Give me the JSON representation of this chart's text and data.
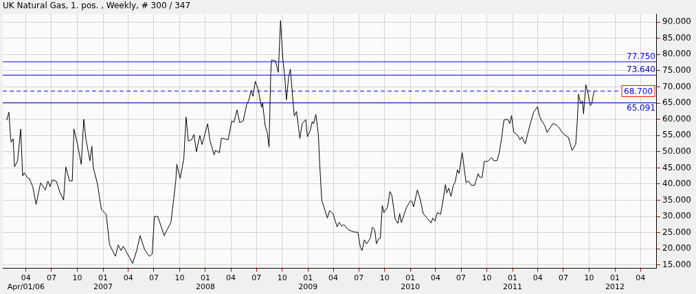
{
  "chart_data": {
    "type": "line",
    "title": "UK Natural Gas, 1. pos. , Weekly, # 300 / 347",
    "x": [
      "2006-01-22",
      "2006-01-30",
      "2006-02-05",
      "2006-02-07",
      "2006-02-14",
      "2006-02-19",
      "2006-03-02",
      "2006-03-13",
      "2006-03-20",
      "2006-03-26",
      "2006-04-05",
      "2006-04-13",
      "2006-04-25",
      "2006-05-07",
      "2006-05-23",
      "2006-06-09",
      "2006-06-18",
      "2006-06-26",
      "2006-07-03",
      "2006-07-18",
      "2006-07-31",
      "2006-08-13",
      "2006-08-21",
      "2006-09-03",
      "2006-09-13",
      "2006-09-19",
      "2006-10-02",
      "2006-10-15",
      "2006-10-24",
      "2006-11-01",
      "2006-11-15",
      "2006-11-22",
      "2006-11-27",
      "2006-12-12",
      "2006-12-26",
      "2007-01-12",
      "2007-01-24",
      "2007-02-14",
      "2007-02-24",
      "2007-03-06",
      "2007-03-14",
      "2007-04-05",
      "2007-04-16",
      "2007-05-01",
      "2007-05-13",
      "2007-05-29",
      "2007-06-15",
      "2007-06-25",
      "2007-07-03",
      "2007-07-15",
      "2007-08-07",
      "2007-08-31",
      "2007-09-17",
      "2007-09-21",
      "2007-10-03",
      "2007-10-16",
      "2007-10-24",
      "2007-11-01",
      "2007-11-13",
      "2007-11-21",
      "2007-11-30",
      "2007-12-12",
      "2007-12-20",
      "2008-01-09",
      "2008-01-17",
      "2008-02-01",
      "2008-02-06",
      "2008-02-20",
      "2008-02-27",
      "2008-03-22",
      "2008-04-04",
      "2008-04-12",
      "2008-04-23",
      "2008-05-02",
      "2008-05-15",
      "2008-05-27",
      "2008-06-04",
      "2008-06-12",
      "2008-06-19",
      "2008-06-27",
      "2008-07-07",
      "2008-07-19",
      "2008-07-23",
      "2008-08-01",
      "2008-08-09",
      "2008-08-15",
      "2008-08-21",
      "2008-08-24",
      "2008-09-07",
      "2008-09-17",
      "2008-09-21",
      "2008-09-25",
      "2008-10-03",
      "2008-10-10",
      "2008-10-16",
      "2008-10-24",
      "2008-10-30",
      "2008-11-09",
      "2008-11-13",
      "2008-11-21",
      "2008-12-03",
      "2008-12-11",
      "2008-12-24",
      "2008-12-30",
      "2009-01-09",
      "2009-01-16",
      "2009-01-21",
      "2009-01-29",
      "2009-02-07",
      "2009-02-12",
      "2009-02-19",
      "2009-02-27",
      "2009-03-11",
      "2009-03-19",
      "2009-03-31",
      "2009-04-15",
      "2009-04-22",
      "2009-05-01",
      "2009-05-09",
      "2009-05-25",
      "2009-06-14",
      "2009-06-28",
      "2009-07-07",
      "2009-07-13",
      "2009-07-21",
      "2009-07-29",
      "2009-08-11",
      "2009-08-19",
      "2009-08-27",
      "2009-09-02",
      "2009-09-10",
      "2009-09-16",
      "2009-09-23",
      "2009-09-29",
      "2009-10-12",
      "2009-10-20",
      "2009-10-27",
      "2009-11-08",
      "2009-11-18",
      "2009-11-24",
      "2009-11-30",
      "2009-12-18",
      "2010-01-01",
      "2010-01-07",
      "2010-01-13",
      "2010-01-26",
      "2010-02-06",
      "2010-02-16",
      "2010-03-02",
      "2010-03-16",
      "2010-03-22",
      "2010-03-30",
      "2010-04-07",
      "2010-04-19",
      "2010-04-30",
      "2010-05-06",
      "2010-05-11",
      "2010-05-18",
      "2010-05-26",
      "2010-06-03",
      "2010-06-10",
      "2010-06-18",
      "2010-06-24",
      "2010-07-05",
      "2010-07-19",
      "2010-07-27",
      "2010-08-07",
      "2010-08-18",
      "2010-08-31",
      "2010-09-06",
      "2010-09-14",
      "2010-09-22",
      "2010-10-04",
      "2010-10-18",
      "2010-10-26",
      "2010-11-07",
      "2010-11-15",
      "2010-11-23",
      "2010-12-01",
      "2010-12-14",
      "2010-12-22",
      "2010-12-28",
      "2011-01-05",
      "2011-01-19",
      "2011-01-27",
      "2011-02-03",
      "2011-02-15",
      "2011-03-03",
      "2011-03-17",
      "2011-03-31",
      "2011-04-07",
      "2011-04-15",
      "2011-04-26",
      "2011-05-04",
      "2011-05-15",
      "2011-05-25",
      "2011-06-08",
      "2011-06-16",
      "2011-06-27",
      "2011-07-06",
      "2011-07-19",
      "2011-08-01",
      "2011-08-14",
      "2011-08-20",
      "2011-08-24",
      "2011-09-01",
      "2011-09-07",
      "2011-09-11",
      "2011-09-15",
      "2011-09-19",
      "2011-09-27",
      "2011-10-05",
      "2011-10-10",
      "2011-10-18",
      "2011-10-21"
    ],
    "series": [
      {
        "color": "#000000",
        "values": [
          59.7,
          62.2,
          54.4,
          52.9,
          54,
          45.3,
          47.2,
          57,
          42.5,
          43.5,
          42.1,
          41.7,
          39.2,
          33.7,
          40.4,
          38.2,
          40.9,
          39.2,
          41.3,
          40.9,
          37.5,
          35.1,
          45.3,
          41,
          41,
          57,
          52.2,
          46.1,
          60,
          53.7,
          47.2,
          51.7,
          45.1,
          40,
          32.1,
          30.7,
          21.3,
          17.7,
          21.2,
          19.5,
          20.8,
          17.4,
          15.5,
          19.5,
          24.1,
          19.8,
          17.7,
          18.4,
          30,
          30,
          24.1,
          28.2,
          40.7,
          46.1,
          41.8,
          47.9,
          60.7,
          53.3,
          53.7,
          55.3,
          50,
          55,
          52.2,
          58.6,
          53.5,
          49,
          50.4,
          49.7,
          54.2,
          53.7,
          59.5,
          59.1,
          62.9,
          59,
          59.5,
          64.5,
          65.9,
          68.9,
          67.1,
          71.7,
          69.3,
          63.7,
          65,
          58,
          55.8,
          51.4,
          74,
          78.3,
          78,
          74.5,
          82.4,
          90.5,
          78.9,
          73.2,
          66,
          73.2,
          75.5,
          65,
          61,
          62.4,
          54.1,
          58.6,
          59.9,
          54.6,
          56.6,
          59.3,
          58.6,
          61.5,
          55.2,
          45.8,
          35,
          32.9,
          29.5,
          31.8,
          30.9,
          26.8,
          28.2,
          27,
          27.5,
          25.9,
          25.2,
          25.1,
          20.4,
          19.5,
          22.8,
          21.5,
          23.3,
          26.7,
          25.9,
          21.6,
          23.1,
          23.3,
          33.4,
          31.2,
          33,
          37.7,
          36.6,
          29.1,
          27.9,
          30.9,
          28.1,
          32.7,
          34.8,
          34.6,
          33,
          38.2,
          35.1,
          30.9,
          29.5,
          28,
          29.5,
          28.6,
          31.2,
          30.7,
          36.2,
          39.8,
          37.3,
          38.7,
          36.2,
          39.5,
          40.6,
          44.4,
          43.3,
          49.7,
          40.4,
          41,
          39.6,
          39.6,
          43.2,
          42.1,
          42.1,
          47,
          47,
          48.2,
          47.2,
          47.3,
          50,
          54.4,
          59.8,
          60,
          58.7,
          61.2,
          56,
          55.1,
          53.7,
          54.6,
          52.4,
          58,
          62.2,
          63.9,
          60.9,
          59.5,
          58,
          55.9,
          57.4,
          58.7,
          58.1,
          57.4,
          55.9,
          55.2,
          54.4,
          50.4,
          52.2,
          60,
          67.7,
          64.8,
          65.7,
          61.7,
          66.2,
          70.7,
          68,
          64.2,
          64.7,
          68.5,
          68.7
        ]
      }
    ],
    "xlim": [
      "2006-01-08",
      "2012-05-27"
    ],
    "xticks": [
      {
        "value": "2006-04-01",
        "label": "04\nApr/01/06"
      },
      {
        "value": "2006-07-01",
        "label": "07"
      },
      {
        "value": "2006-10-01",
        "label": "10"
      },
      {
        "value": "2007-01-01",
        "label": "01\n2007"
      },
      {
        "value": "2007-04-01",
        "label": "04"
      },
      {
        "value": "2007-07-01",
        "label": "07"
      },
      {
        "value": "2007-10-01",
        "label": "10"
      },
      {
        "value": "2008-01-01",
        "label": "01\n2008"
      },
      {
        "value": "2008-04-01",
        "label": "04"
      },
      {
        "value": "2008-07-01",
        "label": "07"
      },
      {
        "value": "2008-10-01",
        "label": "10"
      },
      {
        "value": "2009-01-01",
        "label": "01\n2009"
      },
      {
        "value": "2009-04-01",
        "label": "04"
      },
      {
        "value": "2009-07-01",
        "label": "07"
      },
      {
        "value": "2009-10-01",
        "label": "10"
      },
      {
        "value": "2010-01-01",
        "label": "01\n2010"
      },
      {
        "value": "2010-04-01",
        "label": "04"
      },
      {
        "value": "2010-07-01",
        "label": "07"
      },
      {
        "value": "2010-10-01",
        "label": "10"
      },
      {
        "value": "2011-01-01",
        "label": "01\n2011"
      },
      {
        "value": "2011-04-01",
        "label": "04"
      },
      {
        "value": "2011-07-01",
        "label": "07"
      },
      {
        "value": "2011-10-01",
        "label": "10"
      },
      {
        "value": "2012-01-01",
        "label": "01\n2012"
      },
      {
        "value": "2012-04-01",
        "label": "04"
      }
    ],
    "ylim": [
      14,
      92.5
    ],
    "yticks": [
      {
        "value": 15,
        "label": "15.000"
      },
      {
        "value": 20,
        "label": "20.000"
      },
      {
        "value": 25,
        "label": "25.000"
      },
      {
        "value": 30,
        "label": "30.000"
      },
      {
        "value": 35,
        "label": "35.000"
      },
      {
        "value": 40,
        "label": "40.000"
      },
      {
        "value": 45,
        "label": "45.000"
      },
      {
        "value": 50,
        "label": "50.000"
      },
      {
        "value": 55,
        "label": "55.000"
      },
      {
        "value": 60,
        "label": "60.000"
      },
      {
        "value": 65,
        "label": "65.000"
      },
      {
        "value": 70,
        "label": "70.000"
      },
      {
        "value": 75,
        "label": "75.000"
      },
      {
        "value": 80,
        "label": "80.000"
      },
      {
        "value": 85,
        "label": "85.000"
      },
      {
        "value": 90,
        "label": "90.000"
      }
    ],
    "ref_lines": [
      {
        "axis": "y",
        "value": 77.75,
        "label": "77.750",
        "color": "#0000ff",
        "line_style": "solid"
      },
      {
        "axis": "y",
        "value": 73.64,
        "label": "73.640",
        "color": "#0000cc",
        "line_style": "solid"
      },
      {
        "axis": "y",
        "value": 68.7,
        "label": "68.700",
        "color": "#0000ff",
        "line_style": "dashed"
      },
      {
        "axis": "y",
        "value": 65.091,
        "label": "65.091",
        "color": "#0000cc",
        "line_style": "solid"
      }
    ],
    "grid": true,
    "legend": false,
    "marker": "none",
    "line_style": "solid"
  }
}
